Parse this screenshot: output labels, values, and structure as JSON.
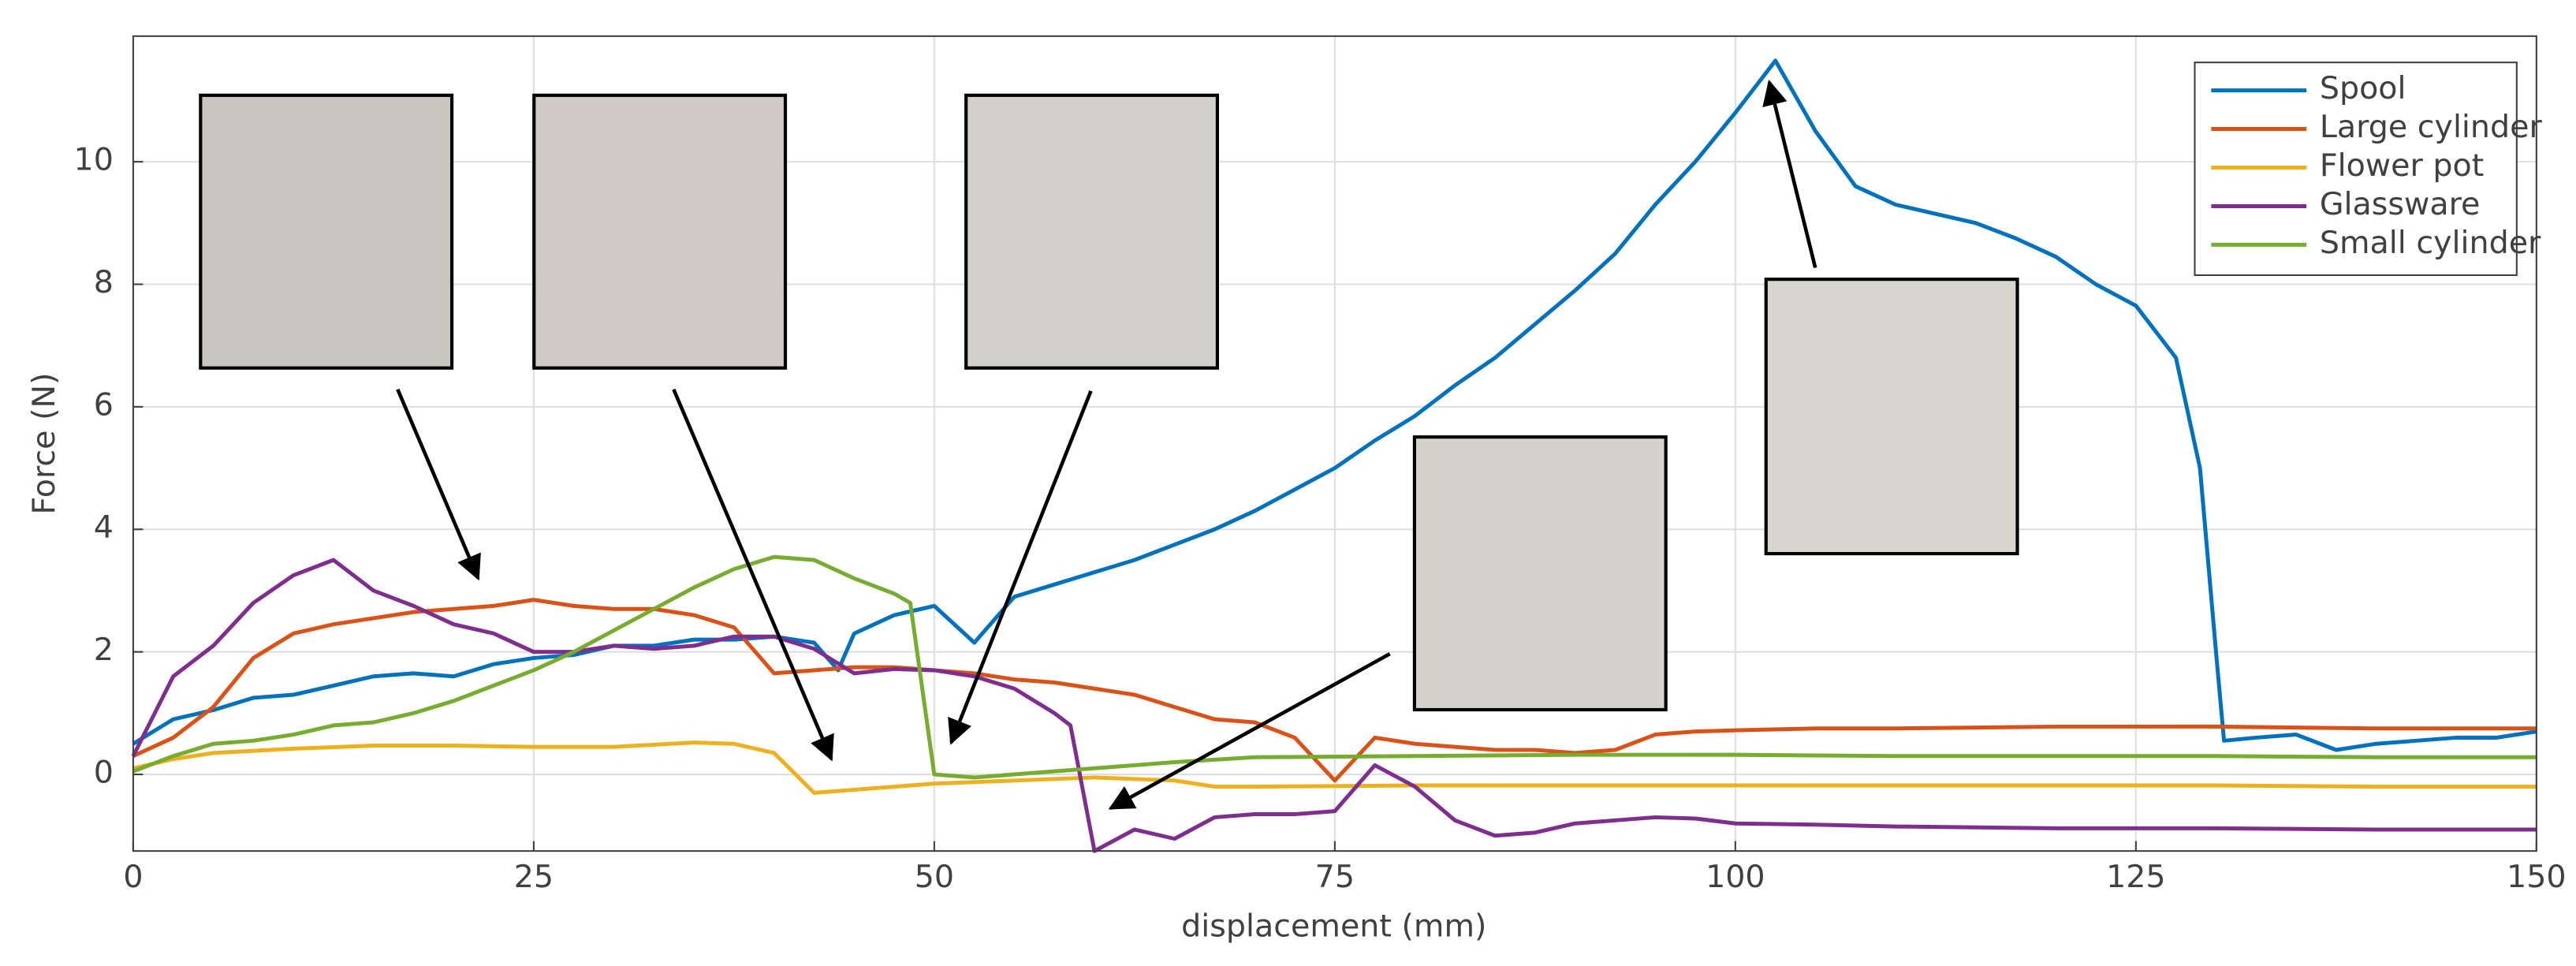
{
  "chart_data": {
    "type": "line",
    "x_label": "displacement (mm)",
    "y_label": "Force (N)",
    "xlim": [
      0,
      150
    ],
    "ylim": [
      -1.25,
      12.05
    ],
    "xticks": [
      0,
      25,
      50,
      75,
      100,
      125,
      150
    ],
    "yticks": [
      0,
      2,
      4,
      6,
      8,
      10
    ],
    "grid": true,
    "legend": "top-right",
    "series": [
      {
        "name": "Spool",
        "color": "#0072bd",
        "x": [
          0,
          2.5,
          5,
          7.5,
          10,
          12.5,
          15,
          17.5,
          20,
          22.5,
          25,
          27.5,
          30,
          32.5,
          35,
          37.5,
          40,
          42.5,
          44,
          45,
          47.5,
          50,
          52.5,
          55,
          57.5,
          60,
          62.5,
          65,
          67.5,
          70,
          72.5,
          75,
          77.5,
          80,
          82.5,
          85,
          87.5,
          90,
          92.5,
          95,
          97.5,
          100,
          102.5,
          105,
          107.5,
          110,
          112.5,
          115,
          117.5,
          120,
          122.5,
          125,
          127.5,
          129,
          130,
          130.5,
          132.5,
          135,
          137.5,
          140,
          142.5,
          145,
          147.5,
          150
        ],
        "values": [
          0.5,
          0.9,
          1.05,
          1.25,
          1.3,
          1.45,
          1.6,
          1.65,
          1.6,
          1.8,
          1.9,
          1.95,
          2.1,
          2.1,
          2.2,
          2.2,
          2.25,
          2.15,
          1.7,
          2.3,
          2.6,
          2.75,
          2.15,
          2.9,
          3.1,
          3.3,
          3.5,
          3.75,
          4.0,
          4.3,
          4.65,
          5.0,
          5.45,
          5.85,
          6.35,
          6.8,
          7.35,
          7.9,
          8.5,
          9.3,
          10.0,
          10.8,
          11.65,
          10.5,
          9.6,
          9.3,
          9.15,
          9.0,
          8.75,
          8.45,
          8.0,
          7.65,
          6.8,
          5.0,
          2.0,
          0.55,
          0.6,
          0.65,
          0.4,
          0.5,
          0.55,
          0.6,
          0.6,
          0.7
        ]
      },
      {
        "name": "Large cylinder",
        "color": "#d95319",
        "x": [
          0,
          2.5,
          5,
          7.5,
          10,
          12.5,
          15,
          17.5,
          20,
          22.5,
          25,
          27.5,
          30,
          32.5,
          35,
          37.5,
          40,
          42.5,
          45,
          47.5,
          50,
          52.5,
          55,
          57.5,
          60,
          62.5,
          65,
          67.5,
          70,
          72.5,
          75,
          77.5,
          80,
          82.5,
          85,
          87.5,
          90,
          92.5,
          95,
          97.5,
          100,
          105,
          110,
          120,
          130,
          140,
          150
        ],
        "values": [
          0.3,
          0.6,
          1.1,
          1.9,
          2.3,
          2.45,
          2.55,
          2.65,
          2.7,
          2.75,
          2.85,
          2.75,
          2.7,
          2.7,
          2.6,
          2.4,
          1.65,
          1.7,
          1.75,
          1.75,
          1.7,
          1.65,
          1.55,
          1.5,
          1.4,
          1.3,
          1.1,
          0.9,
          0.85,
          0.6,
          -0.1,
          0.6,
          0.5,
          0.45,
          0.4,
          0.4,
          0.35,
          0.4,
          0.65,
          0.7,
          0.72,
          0.75,
          0.75,
          0.78,
          0.78,
          0.75,
          0.75
        ]
      },
      {
        "name": "Flower pot",
        "color": "#edb120",
        "x": [
          0,
          2.5,
          5,
          10,
          15,
          20,
          25,
          30,
          35,
          37.5,
          40,
          42.5,
          45,
          50,
          55,
          60,
          65,
          67.5,
          70,
          80,
          90,
          100,
          110,
          120,
          130,
          140,
          150
        ],
        "values": [
          0.1,
          0.25,
          0.35,
          0.42,
          0.47,
          0.47,
          0.45,
          0.45,
          0.52,
          0.5,
          0.35,
          -0.3,
          -0.25,
          -0.15,
          -0.1,
          -0.05,
          -0.1,
          -0.2,
          -0.2,
          -0.18,
          -0.18,
          -0.18,
          -0.18,
          -0.18,
          -0.18,
          -0.2,
          -0.2
        ]
      },
      {
        "name": "Glassware",
        "color": "#7e2f8e",
        "x": [
          0,
          2.5,
          5,
          7.5,
          10,
          12.5,
          15,
          17.5,
          20,
          22.5,
          25,
          27.5,
          30,
          32.5,
          35,
          37.5,
          40,
          42.5,
          45,
          47.5,
          50,
          52.5,
          55,
          57.5,
          58.5,
          60,
          62.5,
          65,
          67.5,
          70,
          72.5,
          75,
          77.5,
          80,
          82.5,
          85,
          87.5,
          90,
          92.5,
          95,
          97.5,
          100,
          105,
          110,
          120,
          130,
          140,
          150
        ],
        "values": [
          0.3,
          1.6,
          2.1,
          2.8,
          3.25,
          3.5,
          3.0,
          2.75,
          2.45,
          2.3,
          2.0,
          2.0,
          2.1,
          2.05,
          2.1,
          2.25,
          2.25,
          2.05,
          1.65,
          1.72,
          1.7,
          1.6,
          1.4,
          1.0,
          0.8,
          -1.25,
          -0.9,
          -1.05,
          -0.7,
          -0.65,
          -0.65,
          -0.6,
          0.15,
          -0.2,
          -0.75,
          -1.0,
          -0.95,
          -0.8,
          -0.75,
          -0.7,
          -0.72,
          -0.8,
          -0.82,
          -0.85,
          -0.88,
          -0.88,
          -0.9,
          -0.9
        ]
      },
      {
        "name": "Small cylinder",
        "color": "#77ac30",
        "x": [
          0,
          2.5,
          5,
          7.5,
          10,
          12.5,
          15,
          17.5,
          20,
          22.5,
          25,
          27.5,
          30,
          32.5,
          35,
          37.5,
          40,
          42.5,
          45,
          47.5,
          48.5,
          50,
          52.5,
          55,
          60,
          65,
          70,
          80,
          90,
          100,
          110,
          120,
          130,
          140,
          150
        ],
        "values": [
          0.05,
          0.3,
          0.5,
          0.55,
          0.65,
          0.8,
          0.85,
          1.0,
          1.2,
          1.45,
          1.7,
          2.0,
          2.35,
          2.7,
          3.05,
          3.35,
          3.55,
          3.5,
          3.2,
          2.95,
          2.8,
          0.0,
          -0.05,
          0.0,
          0.1,
          0.2,
          0.28,
          0.3,
          0.32,
          0.32,
          0.3,
          0.3,
          0.3,
          0.28,
          0.28
        ]
      }
    ]
  }
}
